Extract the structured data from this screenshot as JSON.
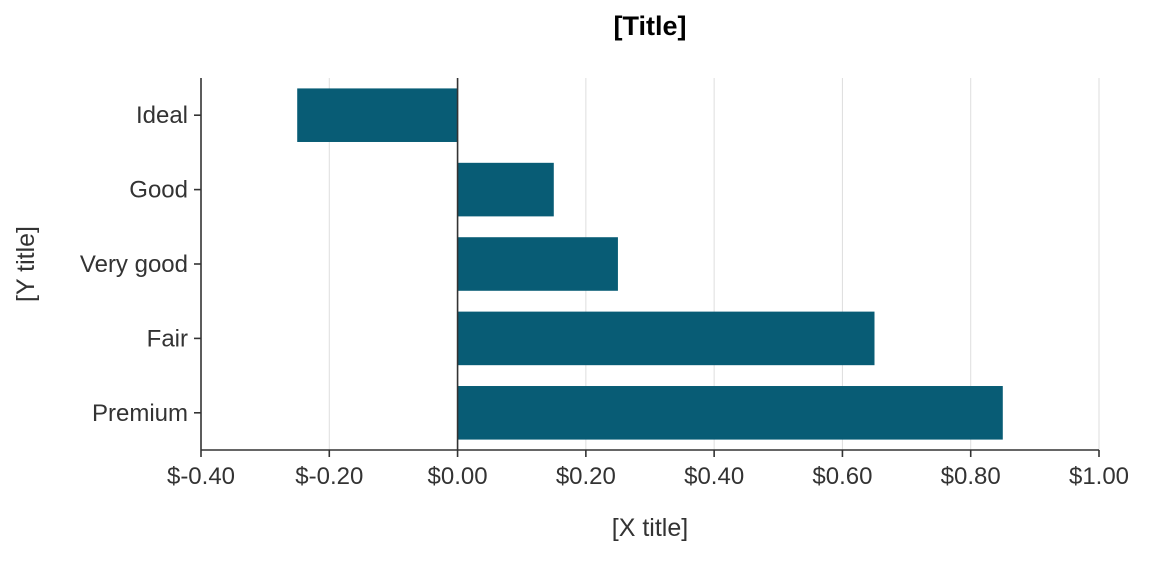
{
  "chart_data": {
    "type": "bar",
    "orientation": "horizontal",
    "title": "[Title]",
    "xlabel": "[X title]",
    "ylabel": "[Y title]",
    "categories": [
      "Ideal",
      "Good",
      "Very good",
      "Fair",
      "Premium"
    ],
    "values": [
      -0.25,
      0.15,
      0.25,
      0.65,
      0.85
    ],
    "xlim": [
      -0.4,
      1.0
    ],
    "x_ticks": [
      -0.4,
      -0.2,
      0.0,
      0.2,
      0.4,
      0.6,
      0.8,
      1.0
    ],
    "x_tick_labels": [
      "$-0.40",
      "$-0.20",
      "$0.00",
      "$0.20",
      "$0.40",
      "$0.60",
      "$0.80",
      "$1.00"
    ],
    "bar_color": "#085c75",
    "grid": "vertical-major",
    "zero_line": true,
    "legend": "none"
  }
}
